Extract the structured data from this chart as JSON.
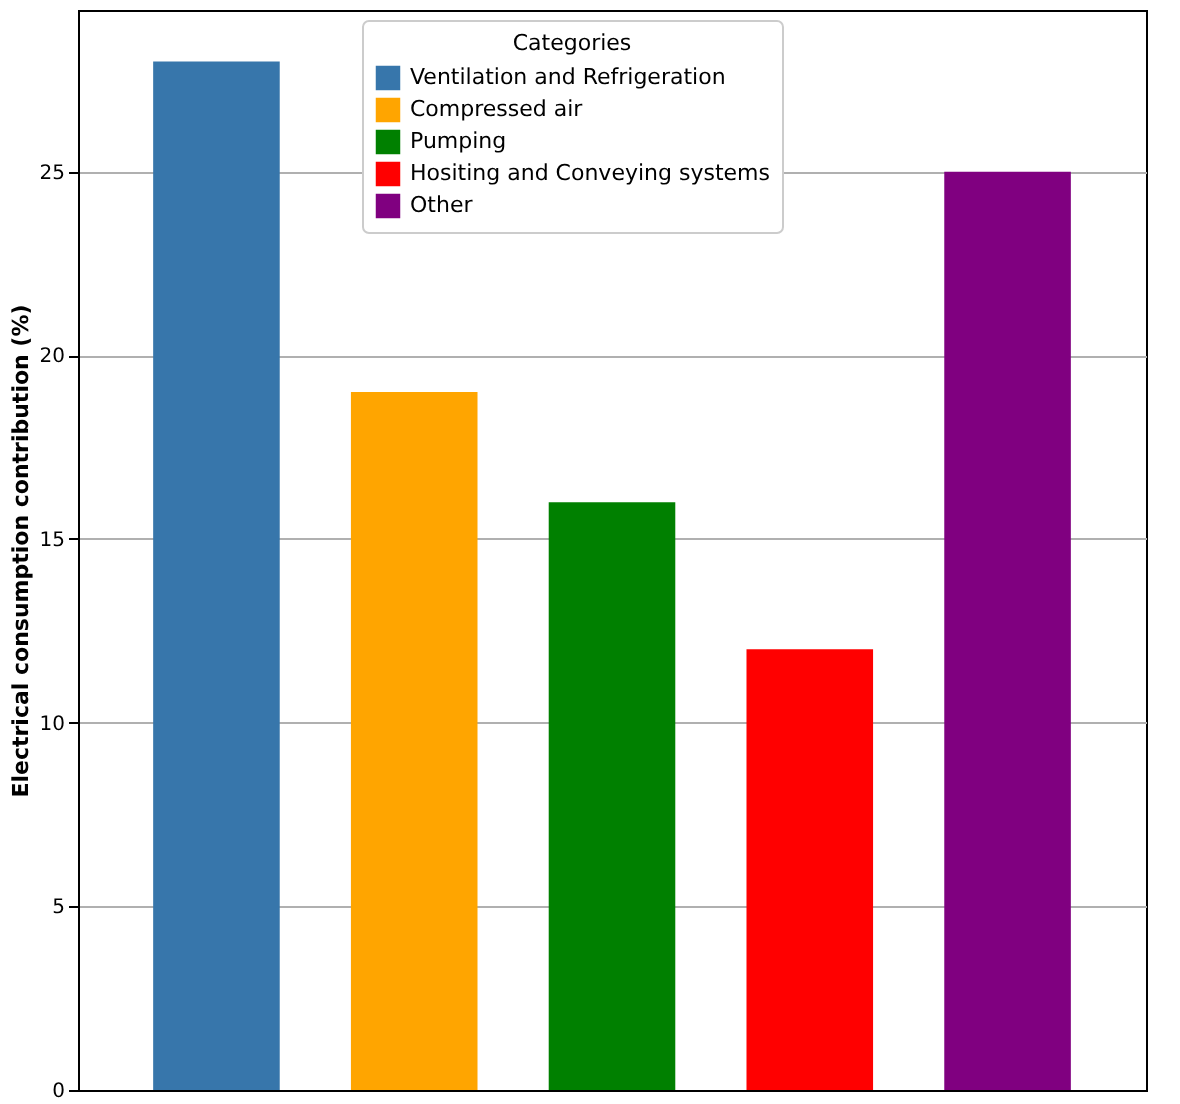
{
  "chart_data": {
    "type": "bar",
    "ylabel": "Electrical consumption contribution (%)",
    "legend_title": "Categories",
    "categories": [
      null,
      null,
      null,
      null,
      null
    ],
    "series": [
      {
        "name": "Ventilation and Refrigeration",
        "color": "#3776ab",
        "values": [
          28,
          null,
          null,
          null,
          null
        ]
      },
      {
        "name": "Compressed air",
        "color": "#ffa500",
        "values": [
          null,
          19,
          null,
          null,
          null
        ]
      },
      {
        "name": "Pumping",
        "color": "#008000",
        "values": [
          null,
          null,
          16,
          null,
          null
        ]
      },
      {
        "name": "Hositing and Conveying systems",
        "color": "#ff0000",
        "values": [
          null,
          null,
          null,
          12,
          null
        ]
      },
      {
        "name": "Other",
        "color": "#800080",
        "values": [
          null,
          null,
          null,
          null,
          25
        ]
      }
    ],
    "ylim": [
      0,
      29.4
    ],
    "yticks": [
      0,
      5,
      10,
      15,
      20,
      25
    ],
    "grid": "y",
    "legend": "top",
    "tick_labels": "y"
  }
}
